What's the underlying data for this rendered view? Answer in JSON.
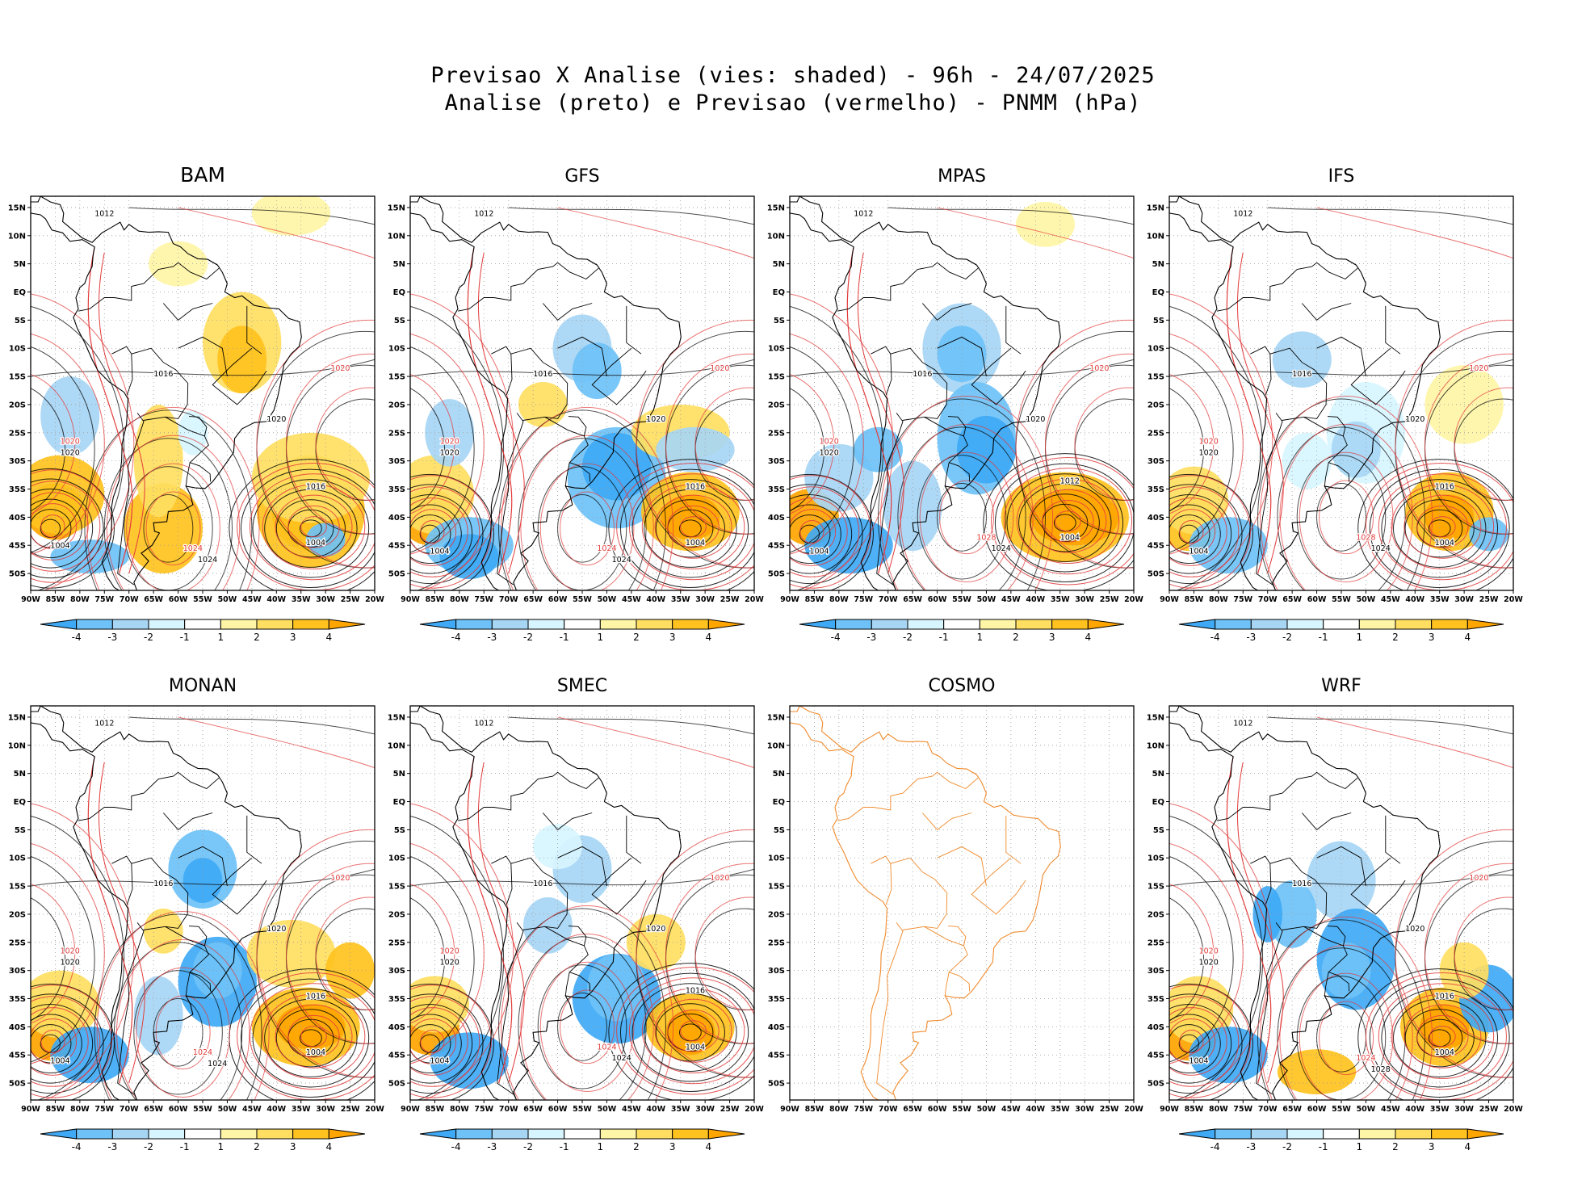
{
  "title_line1": "Previsao X Analise (vies: shaded) - 96h - 24/07/2025",
  "title_line2": "Analise (preto) e Previsao (vermelho) - PNMM (hPa)",
  "lat_labels": [
    "15N",
    "10N",
    "5N",
    "EQ",
    "5S",
    "10S",
    "15S",
    "20S",
    "25S",
    "30S",
    "35S",
    "40S",
    "45S",
    "50S"
  ],
  "lon_labels": [
    "90W",
    "85W",
    "80W",
    "75W",
    "70W",
    "65W",
    "60W",
    "55W",
    "50W",
    "45W",
    "40W",
    "35W",
    "30W",
    "25W",
    "20W"
  ],
  "colorbar": {
    "tick_labels": [
      "-4",
      "-3",
      "-2",
      "-1",
      "1",
      "2",
      "3",
      "4"
    ],
    "colors": [
      "#3fa9f5",
      "#6ec2f7",
      "#a7d6f5",
      "#d7f5ff",
      "#ffffff",
      "#fff5a7",
      "#ffde61",
      "#ffc21e",
      "#ffa500"
    ]
  },
  "colors": {
    "analysis": "#000000",
    "forecast": "#e23b3b",
    "cosmo_coast": "#f08a2c"
  },
  "panels": [
    {
      "name": "BAM",
      "has_data": true,
      "high_label": "1024",
      "low_label": "1004",
      "pac_label": "1020",
      "atl_label": "1016",
      "north_label": "1012",
      "interior_label": "1016",
      "red_label": "1024",
      "red_label2": "1020"
    },
    {
      "name": "GFS",
      "has_data": true,
      "high_label": "1024",
      "low_label": "1004",
      "pac_label": "1020",
      "atl_label": "1016",
      "north_label": "1012",
      "interior_label": "1016",
      "red_label": "1024",
      "red_label2": "1020"
    },
    {
      "name": "MPAS",
      "has_data": true,
      "high_label": "1024",
      "low_label": "1004",
      "pac_label": "1020",
      "atl_label": "1012",
      "north_label": "1012",
      "interior_label": "1016",
      "red_label": "1028",
      "red_label2": "1020"
    },
    {
      "name": "IFS",
      "has_data": true,
      "high_label": "1024",
      "low_label": "1004",
      "pac_label": "1020",
      "atl_label": "1016",
      "north_label": "1012",
      "interior_label": "1016",
      "red_label": "1028",
      "red_label2": "1020"
    },
    {
      "name": "MONAN",
      "has_data": true,
      "high_label": "1024",
      "low_label": "1004",
      "pac_label": "1020",
      "atl_label": "1016",
      "north_label": "1012",
      "interior_label": "1016",
      "red_label": "1024",
      "red_label2": "1020"
    },
    {
      "name": "SMEC",
      "has_data": true,
      "high_label": "1024",
      "low_label": "1004",
      "pac_label": "1020",
      "atl_label": "1016",
      "north_label": "1012",
      "interior_label": "1016",
      "red_label": "1024",
      "red_label2": "1020"
    },
    {
      "name": "COSMO",
      "has_data": false
    },
    {
      "name": "WRF",
      "has_data": true,
      "high_label": "1028",
      "low_label": "1004",
      "pac_label": "1020",
      "atl_label": "1016",
      "north_label": "1012",
      "interior_label": "1016",
      "red_label": "1024",
      "red_label2": "1020"
    }
  ]
}
